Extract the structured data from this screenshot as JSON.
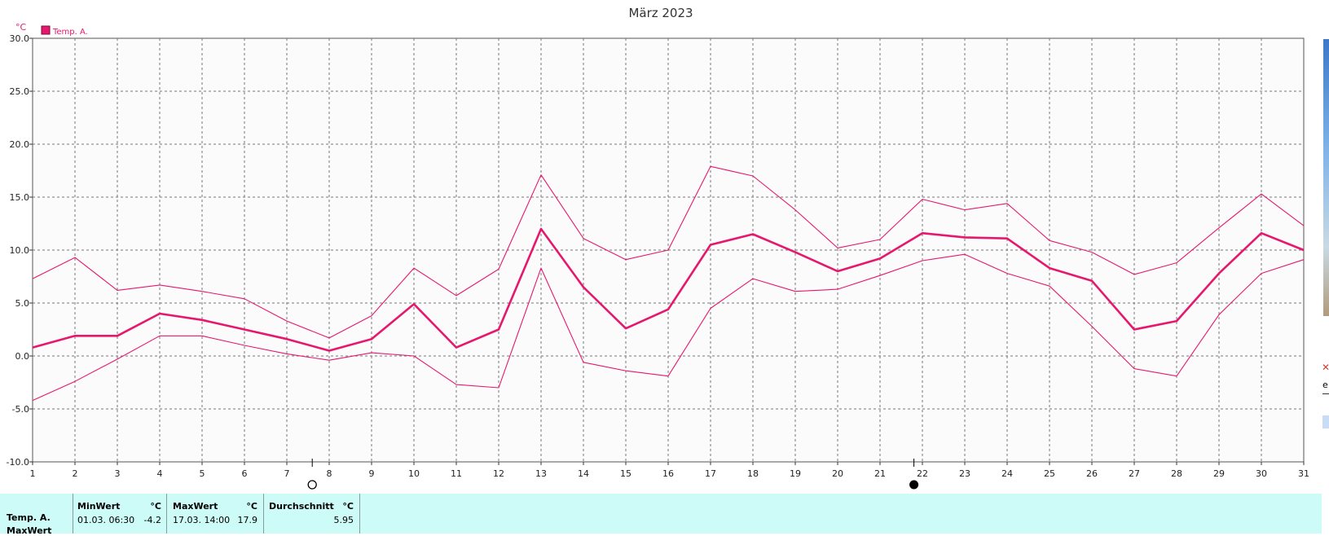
{
  "chart_data": {
    "type": "line",
    "title": "März 2023",
    "ylabel": "°C",
    "ylim": [
      -10,
      30
    ],
    "yticks": [
      "30.0",
      "25.0",
      "20.0",
      "15.0",
      "10.0",
      "5.0",
      "0.0",
      "-5.0",
      "-10.0"
    ],
    "ytick_values": [
      30,
      25,
      20,
      15,
      10,
      5,
      0,
      -5,
      -10
    ],
    "xlim": [
      1,
      31
    ],
    "x": [
      1,
      2,
      3,
      4,
      5,
      6,
      7,
      8,
      9,
      10,
      11,
      12,
      13,
      14,
      15,
      16,
      17,
      18,
      19,
      20,
      21,
      22,
      23,
      24,
      25,
      26,
      27,
      28,
      29,
      30,
      31
    ],
    "xtick_labels": [
      "1",
      "2",
      "3",
      "4",
      "5",
      "6",
      "7",
      "8",
      "9",
      "10",
      "11",
      "12",
      "13",
      "14",
      "15",
      "16",
      "17",
      "18",
      "19",
      "20",
      "21",
      "22",
      "23",
      "24",
      "25",
      "26",
      "27",
      "28",
      "29",
      "30",
      "31"
    ],
    "grid": true,
    "legend": {
      "position": "top-left",
      "label": "Temp. A."
    },
    "color": "#e6186e",
    "series": [
      {
        "name": "Temp. A.",
        "role": "avg",
        "values": [
          0.8,
          1.9,
          1.9,
          4.0,
          3.4,
          2.5,
          1.6,
          0.5,
          1.6,
          4.9,
          0.8,
          2.5,
          12.0,
          6.5,
          2.6,
          4.4,
          10.5,
          11.5,
          9.8,
          8.0,
          9.2,
          11.6,
          11.2,
          11.1,
          8.3,
          7.1,
          2.5,
          3.3,
          7.8,
          11.6,
          10.0
        ]
      },
      {
        "role": "max",
        "values": [
          7.3,
          9.3,
          6.2,
          6.7,
          6.1,
          5.4,
          3.3,
          1.7,
          3.8,
          8.3,
          5.7,
          8.2,
          17.1,
          11.1,
          9.1,
          10.0,
          17.9,
          17.0,
          13.8,
          10.2,
          11.0,
          14.8,
          13.8,
          14.4,
          10.9,
          9.8,
          7.7,
          8.8,
          12.1,
          15.3,
          12.3
        ]
      },
      {
        "role": "min",
        "values": [
          -4.2,
          -2.4,
          -0.3,
          1.9,
          1.9,
          1.0,
          0.2,
          -0.4,
          0.3,
          0.0,
          -2.7,
          -3.0,
          8.3,
          -0.6,
          -1.4,
          -1.9,
          4.5,
          7.3,
          6.1,
          6.3,
          7.6,
          9.0,
          9.6,
          7.8,
          6.6,
          2.8,
          -1.2,
          -1.9,
          3.9,
          7.8,
          9.1
        ]
      }
    ],
    "moon_phases": [
      {
        "x": 7.6,
        "icon": "full-moon-icon"
      },
      {
        "x": 21.8,
        "icon": "new-moon-icon"
      }
    ]
  },
  "stats": {
    "row_label": "Temp. A.",
    "row_label_cut": "MaxWert",
    "min_header": "MinWert",
    "min_unit": "°C",
    "min_date": "01.03.  06:30",
    "min_value": "-4.2",
    "max_header": "MaxWert",
    "max_unit": "°C",
    "max_date": "17.03.  14:00",
    "max_value": "17.9",
    "avg_header": "Durchschnitt",
    "avg_unit": "°C",
    "avg_value": "5.95"
  },
  "side_strip": {
    "close_icon": "close-icon",
    "fragment_text": "e"
  }
}
